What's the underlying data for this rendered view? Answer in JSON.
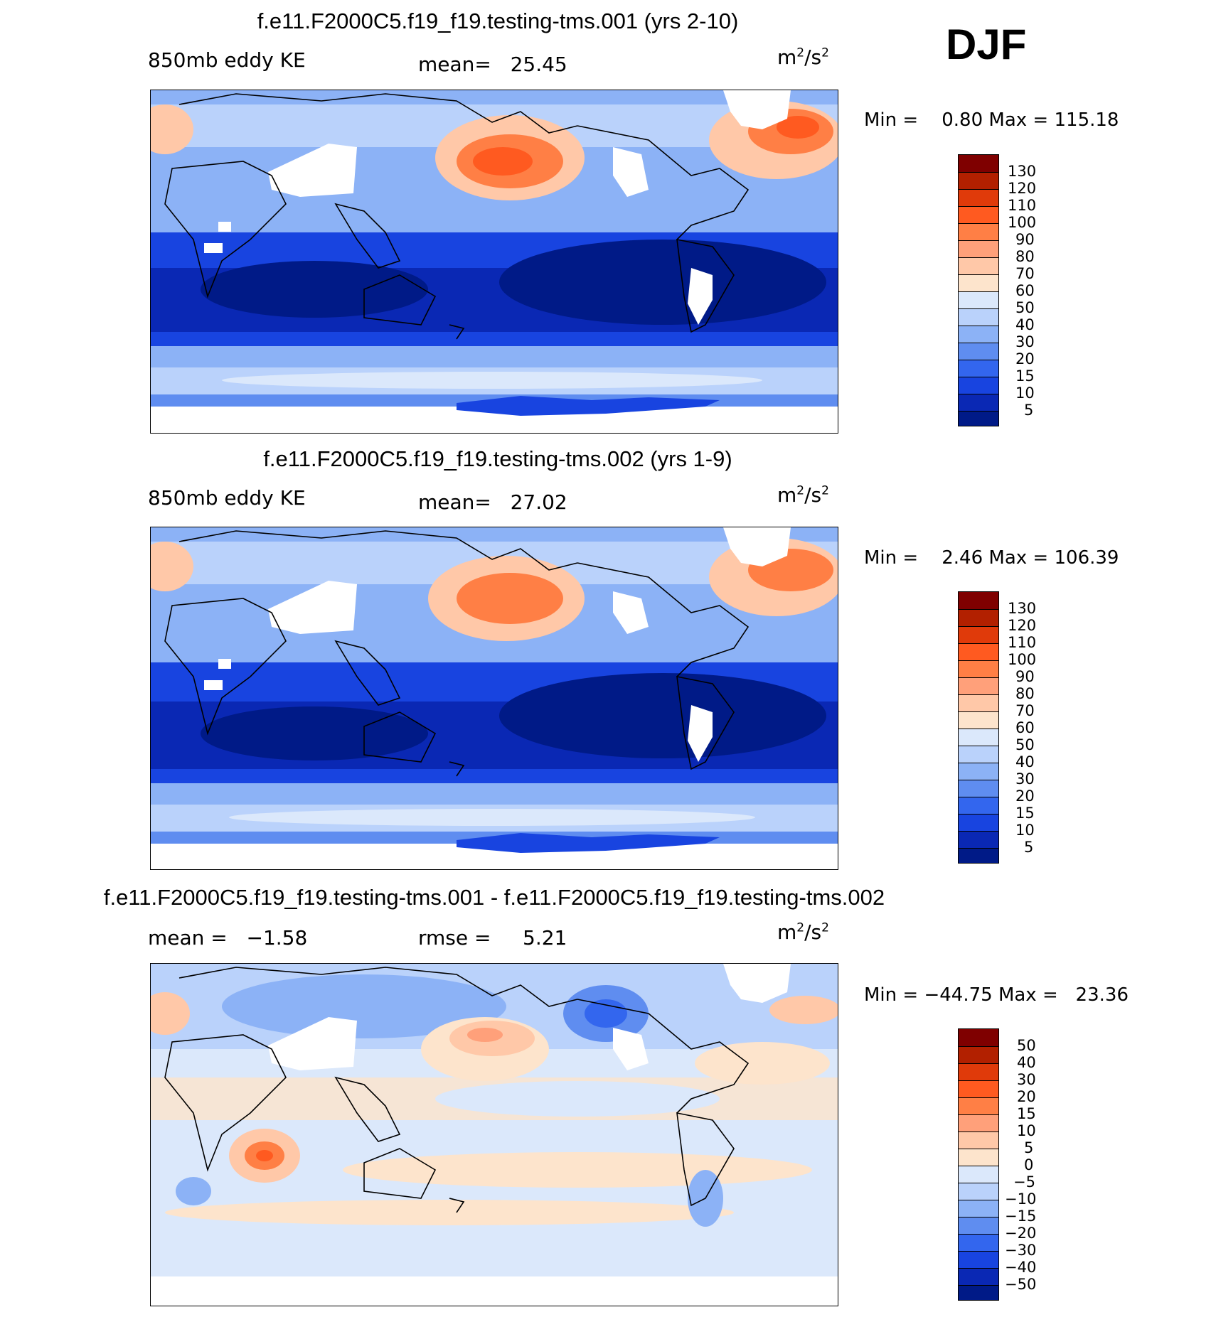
{
  "season": "DJF",
  "panels": [
    {
      "title": "f.e11.F2000C5.f19_f19.testing-tms.001 (yrs 2-10)",
      "left_label": "850mb eddy KE",
      "stat_label": "mean=",
      "stat_value": "25.45",
      "stat2_label": "",
      "stat2_value": "",
      "units_base": "m",
      "units_exp": "2",
      "units_sep": "/s",
      "units_exp2": "2",
      "min_label": "Min =",
      "min_value": "0.80",
      "max_label": "Max =",
      "max_value": "115.18"
    },
    {
      "title": "f.e11.F2000C5.f19_f19.testing-tms.002 (yrs 1-9)",
      "left_label": "850mb eddy KE",
      "stat_label": "mean=",
      "stat_value": "27.02",
      "stat2_label": "",
      "stat2_value": "",
      "units_base": "m",
      "units_exp": "2",
      "units_sep": "/s",
      "units_exp2": "2",
      "min_label": "Min =",
      "min_value": "2.46",
      "max_label": "Max =",
      "max_value": "106.39"
    },
    {
      "title": "f.e11.F2000C5.f19_f19.testing-tms.001 - f.e11.F2000C5.f19_f19.testing-tms.002",
      "left_label": "mean =",
      "stat_label": "",
      "stat_value": "−1.58",
      "stat2_label": "rmse =",
      "stat2_value": "5.21",
      "units_base": "m",
      "units_exp": "2",
      "units_sep": "/s",
      "units_exp2": "2",
      "min_label": "Min =",
      "min_value": "−44.75",
      "max_label": "Max =",
      "max_value": "23.36"
    }
  ],
  "colorbars": {
    "field": {
      "labels": [
        "130",
        "120",
        "110",
        "100",
        "90",
        "80",
        "70",
        "60",
        "50",
        "40",
        "30",
        "20",
        "15",
        "10",
        "5"
      ],
      "colors": [
        "#7f0000",
        "#b22000",
        "#e03a0a",
        "#ff5a20",
        "#ff7f45",
        "#ffa07a",
        "#ffc8a8",
        "#fde4cc",
        "#dbe8fb",
        "#bad2fb",
        "#8cb2f6",
        "#5f8df0",
        "#3366ee",
        "#1844e0",
        "#0a28b4",
        "#001a87"
      ]
    },
    "diff": {
      "labels": [
        "50",
        "40",
        "30",
        "20",
        "15",
        "10",
        "5",
        "0",
        "−5",
        "−10",
        "−15",
        "−20",
        "−30",
        "−40",
        "−50"
      ],
      "colors": [
        "#7f0000",
        "#b22000",
        "#e03a0a",
        "#ff5a20",
        "#ff7f45",
        "#ffa07a",
        "#ffc8a8",
        "#fde4cc",
        "#dbe8fb",
        "#bad2fb",
        "#8cb2f6",
        "#5f8df0",
        "#3366ee",
        "#1844e0",
        "#0a28b4",
        "#001a87"
      ]
    }
  }
}
